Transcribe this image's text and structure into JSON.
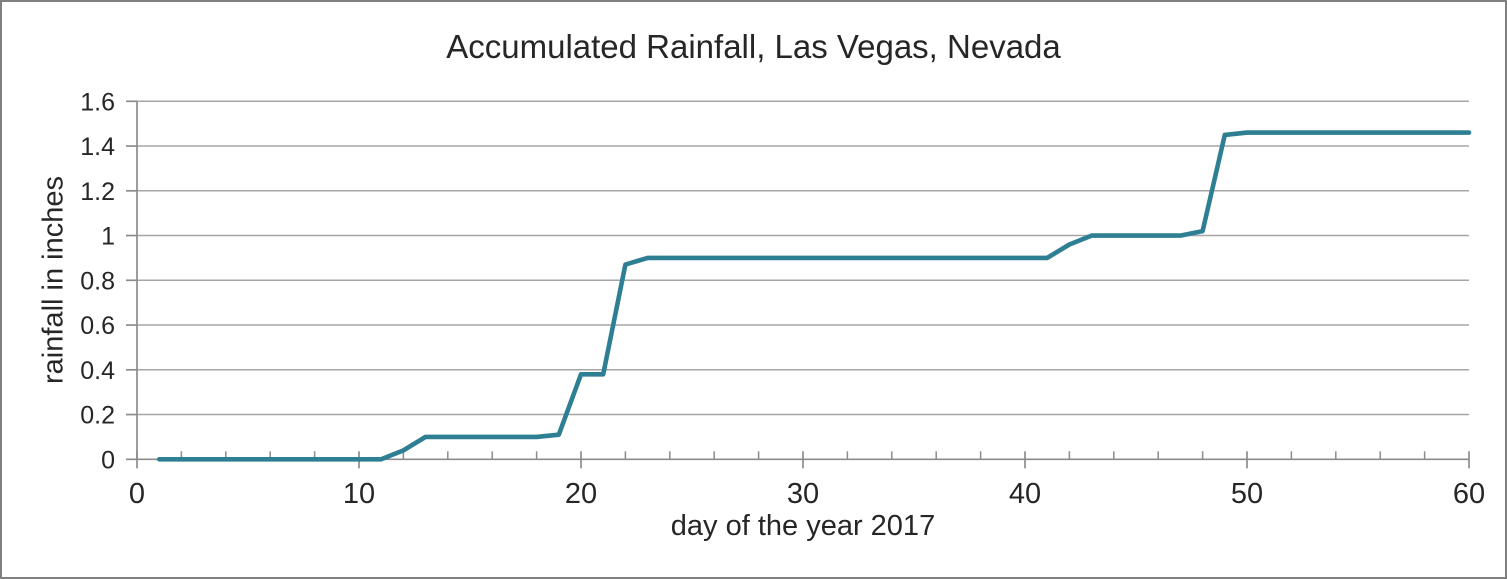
{
  "chart_data": {
    "type": "line",
    "title": "Accumulated Rainfall, Las Vegas, Nevada",
    "xlabel": "day of the year 2017",
    "ylabel": "rainfall in inches",
    "xlim": [
      0,
      60
    ],
    "ylim": [
      0,
      1.6
    ],
    "grid": "horizontal",
    "legend": "none",
    "x_major_ticks": [
      0,
      10,
      20,
      30,
      40,
      50,
      60
    ],
    "x_tick_labels": [
      "0",
      "10",
      "20",
      "30",
      "40",
      "50",
      "60"
    ],
    "x_minor_tick_step": 2,
    "y_ticks": [
      0,
      0.2,
      0.4,
      0.6,
      0.8,
      1,
      1.2,
      1.4,
      1.6
    ],
    "y_tick_labels": [
      "0",
      "0.2",
      "0.4",
      "0.6",
      "0.8",
      "1",
      "1.2",
      "1.4",
      "1.6"
    ],
    "colors": {
      "line": "#2E7F94",
      "grid": "#A6A6A6",
      "axis": "#8C8C8C",
      "text": "#262626",
      "border": "#808080"
    },
    "series": [
      {
        "name": "accumulated rainfall",
        "x": [
          1,
          2,
          3,
          4,
          5,
          6,
          7,
          8,
          9,
          10,
          11,
          12,
          13,
          14,
          15,
          16,
          17,
          18,
          19,
          20,
          21,
          22,
          23,
          24,
          25,
          26,
          27,
          28,
          29,
          30,
          31,
          32,
          33,
          34,
          35,
          36,
          37,
          38,
          39,
          40,
          41,
          42,
          43,
          44,
          45,
          46,
          47,
          48,
          49,
          50,
          51,
          52,
          53,
          54,
          55,
          56,
          57,
          58,
          59,
          60
        ],
        "y": [
          0,
          0,
          0,
          0,
          0,
          0,
          0,
          0,
          0,
          0,
          0,
          0.04,
          0.1,
          0.1,
          0.1,
          0.1,
          0.1,
          0.1,
          0.11,
          0.38,
          0.38,
          0.87,
          0.9,
          0.9,
          0.9,
          0.9,
          0.9,
          0.9,
          0.9,
          0.9,
          0.9,
          0.9,
          0.9,
          0.9,
          0.9,
          0.9,
          0.9,
          0.9,
          0.9,
          0.9,
          0.9,
          0.96,
          1,
          1,
          1,
          1,
          1,
          1.02,
          1.45,
          1.46,
          1.46,
          1.46,
          1.46,
          1.46,
          1.46,
          1.46,
          1.46,
          1.46,
          1.46,
          1.46
        ]
      }
    ]
  }
}
